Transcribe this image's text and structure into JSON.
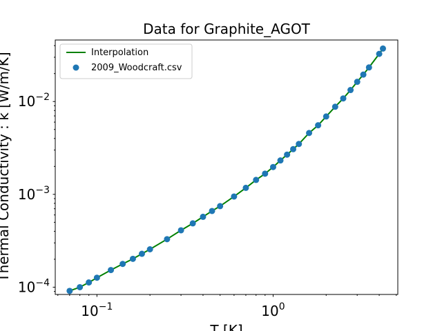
{
  "chart_data": {
    "type": "scatter",
    "title": "Data for Graphite_AGOT",
    "xlabel": "T [K]",
    "ylabel": "Thermal Conductivity : k [W/m/K]",
    "xscale": "log",
    "yscale": "log",
    "xlim": [
      0.058,
      5.1
    ],
    "ylim": [
      8.35e-05,
      0.046
    ],
    "grid": false,
    "legend_position": "top-left",
    "x_ticks": [
      {
        "value": 0.1,
        "base": "10",
        "exp": "−1"
      },
      {
        "value": 1,
        "base": "10",
        "exp": "0"
      }
    ],
    "y_ticks": [
      {
        "value": 0.0001,
        "base": "10",
        "exp": "−4"
      },
      {
        "value": 0.001,
        "base": "10",
        "exp": "−3"
      },
      {
        "value": 0.01,
        "base": "10",
        "exp": "−2"
      }
    ],
    "series": [
      {
        "name": "Interpolation",
        "kind": "line",
        "color": "#008000",
        "x": [
          0.07,
          0.08,
          0.09,
          0.1,
          0.12,
          0.14,
          0.16,
          0.18,
          0.2,
          0.25,
          0.3,
          0.35,
          0.4,
          0.45,
          0.5,
          0.6,
          0.7,
          0.8,
          0.9,
          1.0,
          1.1,
          1.2,
          1.3,
          1.4,
          1.6,
          1.8,
          2.0,
          2.25,
          2.5,
          2.75,
          3.0,
          3.25,
          3.5,
          4.0,
          4.2
        ],
        "y": [
          9.12e-05,
          0.0001,
          0.0001125,
          0.0001265,
          0.000153,
          0.000178,
          0.000202,
          0.000229,
          0.000256,
          0.000329,
          0.00041,
          0.000487,
          0.000573,
          0.000662,
          0.000747,
          0.000948,
          0.001175,
          0.00143,
          0.00167,
          0.00197,
          0.00232,
          0.00268,
          0.00307,
          0.00349,
          0.00458,
          0.00555,
          0.0069,
          0.00879,
          0.0108,
          0.0133,
          0.0163,
          0.0195,
          0.0233,
          0.0326,
          0.0372
        ]
      },
      {
        "name": "2009_Woodcraft.csv",
        "kind": "scatter",
        "color": "#1f77b4",
        "x": [
          0.07,
          0.08,
          0.09,
          0.1,
          0.12,
          0.14,
          0.16,
          0.18,
          0.2,
          0.25,
          0.3,
          0.35,
          0.4,
          0.45,
          0.5,
          0.6,
          0.7,
          0.8,
          0.9,
          1.0,
          1.1,
          1.2,
          1.3,
          1.4,
          1.6,
          1.8,
          2.0,
          2.25,
          2.5,
          2.75,
          3.0,
          3.25,
          3.5,
          4.0,
          4.2
        ],
        "y": [
          9.12e-05,
          0.0001,
          0.0001125,
          0.0001265,
          0.000153,
          0.000178,
          0.000202,
          0.000229,
          0.000256,
          0.000329,
          0.00041,
          0.000487,
          0.000573,
          0.000662,
          0.000747,
          0.000948,
          0.001175,
          0.00143,
          0.00167,
          0.00197,
          0.00232,
          0.00268,
          0.00307,
          0.00349,
          0.00458,
          0.00555,
          0.0069,
          0.00879,
          0.0108,
          0.0133,
          0.0163,
          0.0195,
          0.0233,
          0.0326,
          0.0372
        ]
      }
    ]
  }
}
